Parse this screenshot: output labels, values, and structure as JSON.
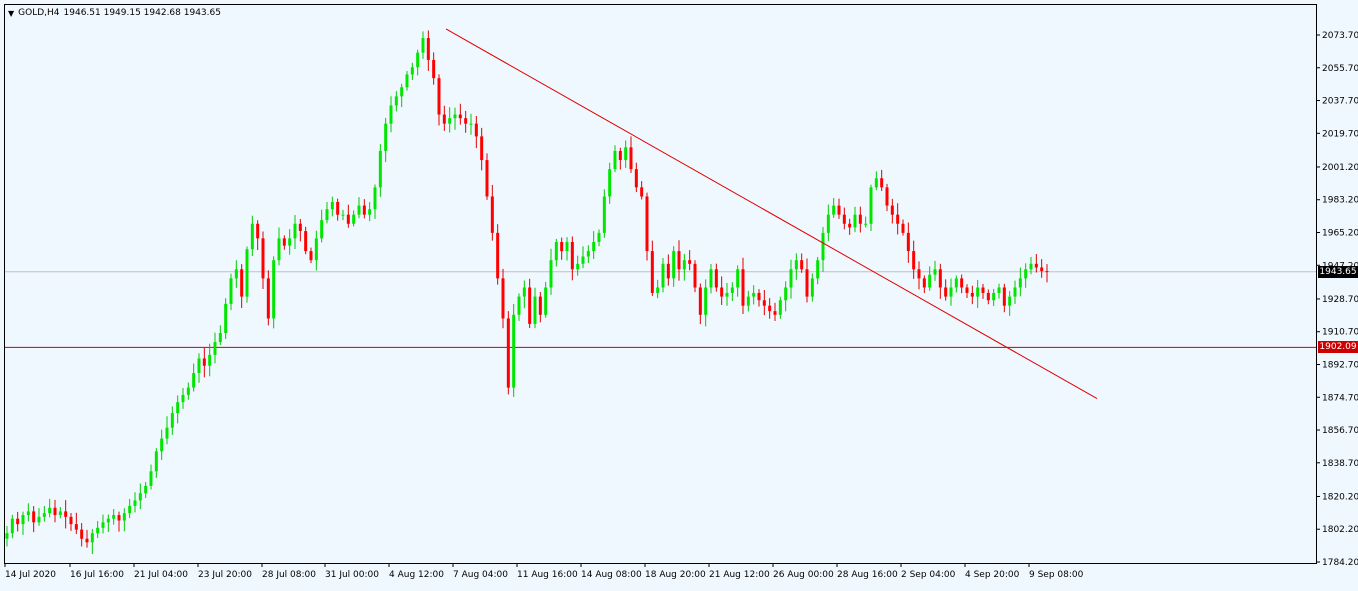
{
  "chart_header": {
    "symbol": "GOLD,H4",
    "ohlc": "1946.51 1949.15 1942.68 1943.65",
    "caret": "▼"
  },
  "colors": {
    "background": "#f0f8ff",
    "bull": "#00e600",
    "bear": "#ff0000",
    "wick_bull": "#00cc00",
    "wick_bear": "#e00000",
    "trendline": "#e00000",
    "support": "#cc0000",
    "bid_line": "#c0c0c0",
    "axis_text": "#000000"
  },
  "chart_data": {
    "type": "candlestick",
    "y_axis": {
      "ticks": [
        "2073.70",
        "2055.70",
        "2037.70",
        "2019.70",
        "2001.20",
        "1983.20",
        "1965.20",
        "1947.20",
        "1928.70",
        "1910.70",
        "1892.70",
        "1874.70",
        "1856.70",
        "1838.70",
        "1820.20",
        "1802.20",
        "1784.20"
      ],
      "ylim": [
        1784.2,
        2073.7
      ]
    },
    "x_axis": {
      "ticks": [
        "14 Jul 2020",
        "16 Jul 16:00",
        "21 Jul 04:00",
        "23 Jul 20:00",
        "28 Jul 08:00",
        "31 Jul 00:00",
        "4 Aug 12:00",
        "7 Aug 04:00",
        "11 Aug 16:00",
        "14 Aug 08:00",
        "18 Aug 20:00",
        "21 Aug 12:00",
        "26 Aug 00:00",
        "28 Aug 16:00",
        "2 Sep 04:00",
        "4 Sep 20:00",
        "9 Sep 08:00"
      ]
    },
    "price_labels": {
      "current": "1943.65",
      "support": "1902.09"
    },
    "current_price": 1943.65,
    "support_level": 1902.09,
    "trendline": {
      "from_price": 2077.0,
      "to_price": 1874.0
    },
    "closes": [
      1800,
      1808,
      1805,
      1810,
      1812,
      1806,
      1809,
      1811,
      1814,
      1810,
      1812,
      1809,
      1805,
      1802,
      1797,
      1795,
      1800,
      1803,
      1806,
      1808,
      1810,
      1807,
      1811,
      1815,
      1818,
      1822,
      1826,
      1834,
      1845,
      1852,
      1858,
      1866,
      1872,
      1876,
      1880,
      1888,
      1896,
      1892,
      1898,
      1905,
      1910,
      1926,
      1940,
      1945,
      1930,
      1956,
      1970,
      1962,
      1940,
      1918,
      1950,
      1962,
      1958,
      1962,
      1970,
      1966,
      1955,
      1950,
      1962,
      1972,
      1978,
      1982,
      1975,
      1975,
      1970,
      1975,
      1980,
      1975,
      1978,
      1990,
      2010,
      2025,
      2035,
      2040,
      2045,
      2052,
      2056,
      2064,
      2072,
      2060,
      2050,
      2030,
      2025,
      2028,
      2030,
      2028,
      2025,
      2025,
      2018,
      2005,
      1985,
      1965,
      1940,
      1918,
      1880,
      1920,
      1930,
      1935,
      1915,
      1930,
      1920,
      1935,
      1950,
      1960,
      1955,
      1960,
      1945,
      1948,
      1952,
      1955,
      1960,
      1965,
      1985,
      2000,
      2010,
      2005,
      2012,
      2000,
      1990,
      1985,
      1955,
      1932,
      1935,
      1948,
      1940,
      1955,
      1945,
      1950,
      1948,
      1935,
      1920,
      1935,
      1945,
      1935,
      1930,
      1932,
      1935,
      1945,
      1925,
      1930,
      1932,
      1928,
      1925,
      1922,
      1920,
      1928,
      1935,
      1945,
      1950,
      1945,
      1930,
      1940,
      1950,
      1965,
      1975,
      1980,
      1975,
      1970,
      1968,
      1975,
      1970,
      1970,
      1990,
      1995,
      1990,
      1980,
      1975,
      1970,
      1965,
      1955,
      1945,
      1940,
      1935,
      1942,
      1945,
      1935,
      1930,
      1935,
      1940,
      1935,
      1932,
      1930,
      1935,
      1932,
      1928,
      1932,
      1935,
      1925,
      1930,
      1935,
      1940,
      1945,
      1948,
      1946,
      1944,
      1943.65
    ]
  }
}
